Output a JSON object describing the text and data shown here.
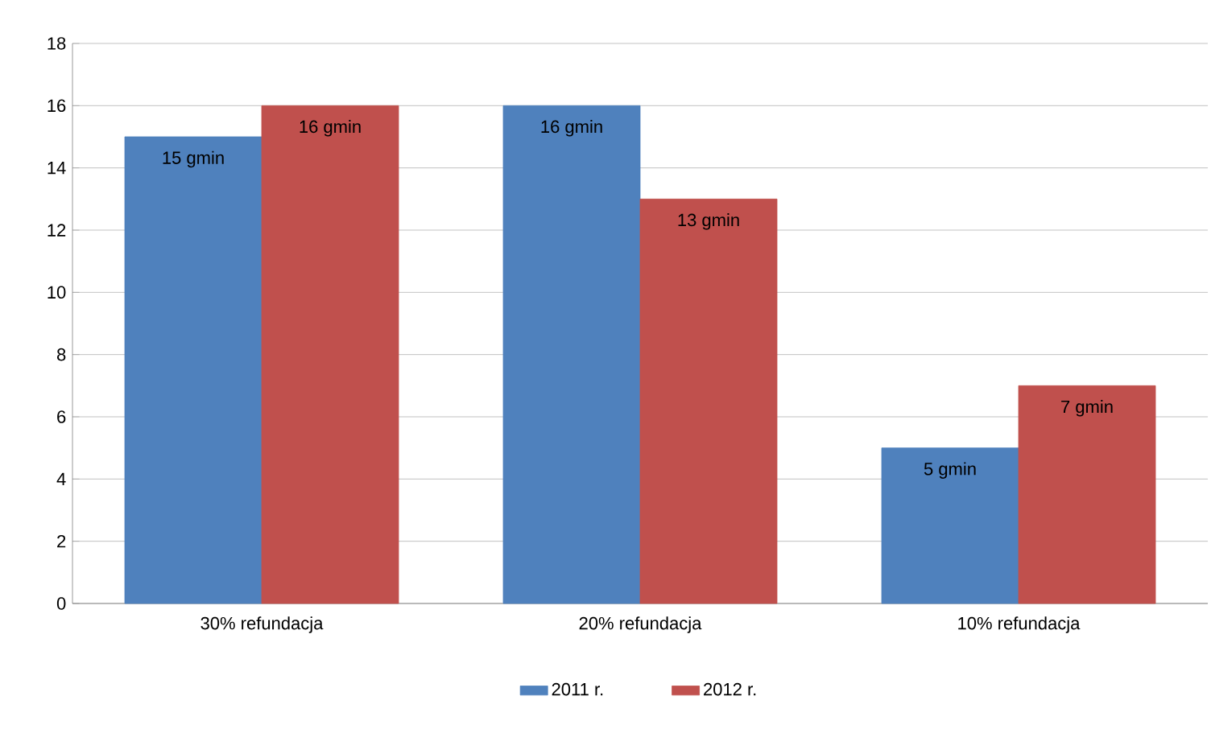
{
  "chart_data": {
    "type": "bar",
    "categories": [
      "30% refundacja",
      "20% refundacja",
      "10% refundacja"
    ],
    "series": [
      {
        "name": "2011 r.",
        "color": "#4f81bd",
        "values": [
          15,
          16,
          5
        ],
        "value_labels": [
          "15 gmin",
          "16 gmin",
          "5 gmin"
        ]
      },
      {
        "name": "2012 r.",
        "color": "#c0504d",
        "values": [
          16,
          13,
          7
        ],
        "value_labels": [
          "16 gmin",
          "13 gmin",
          "7 gmin"
        ]
      }
    ],
    "ylim": [
      0,
      18
    ],
    "yticks": [
      0,
      2,
      4,
      6,
      8,
      10,
      12,
      14,
      16,
      18
    ],
    "grid": "y",
    "legend": "bottom"
  }
}
